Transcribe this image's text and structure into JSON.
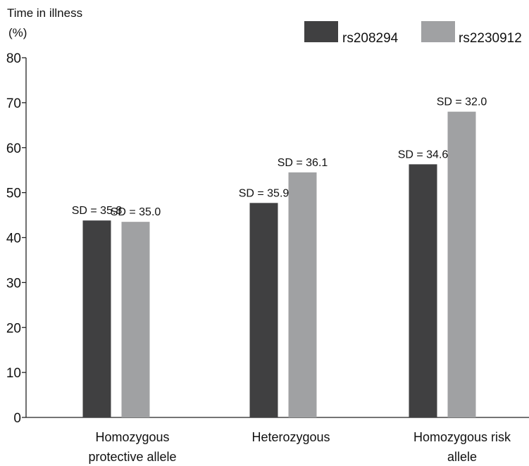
{
  "chart_data": {
    "type": "bar",
    "ylabel_line1": "Time in illness",
    "ylabel_line2": "(%)",
    "ylim": [
      0,
      80
    ],
    "yticks": [
      "0",
      "10",
      "20",
      "30",
      "40",
      "50",
      "60",
      "70",
      "80"
    ],
    "legend_position": "top-right",
    "categories": [
      {
        "line1": "Homozygous",
        "line2": "protective allele"
      },
      {
        "line1": "Heterozygous",
        "line2": ""
      },
      {
        "line1": "Homozygous risk",
        "line2": "allele"
      }
    ],
    "series": [
      {
        "name": "rs208294",
        "color": "#404041",
        "values": [
          43.8,
          47.7,
          56.3
        ],
        "sd_labels": [
          "SD = 35.8",
          "SD = 35.9",
          "SD = 34.6"
        ]
      },
      {
        "name": "rs2230912",
        "color": "#a0a1a3",
        "values": [
          43.5,
          54.5,
          68.0
        ],
        "sd_labels": [
          "SD = 35.0",
          "SD = 36.1",
          "SD = 32.0"
        ]
      }
    ]
  }
}
